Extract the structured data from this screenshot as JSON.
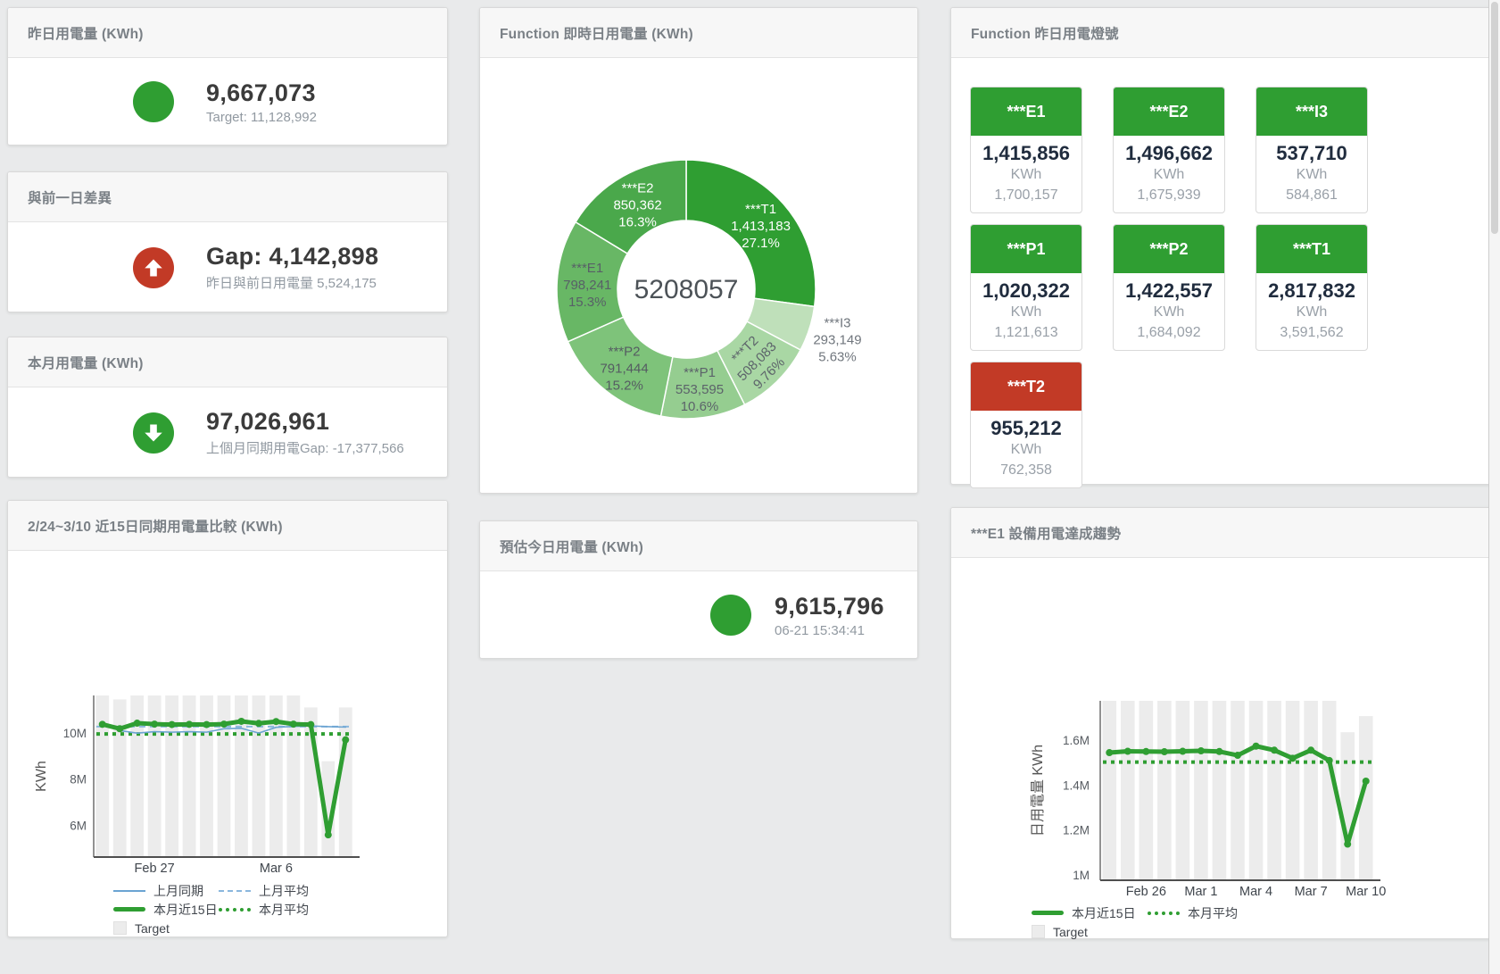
{
  "colors": {
    "green": "#2f9e32",
    "red": "#c23a26",
    "blue_line": "#6ba4d2",
    "blue_dashed": "#8ab7dd",
    "target_bar": "#ececec",
    "value_text": "#3b3b3b",
    "tile_value_text": "#202c3e",
    "panel_title_text": "#7a8086"
  },
  "panels": {
    "yesterday": {
      "title": "昨日用電量 (KWh)",
      "value": "9,667,073",
      "subtitle": "Target: 11,128,992",
      "indicator": "circle",
      "indicator_color": "#2f9e32"
    },
    "day_gap": {
      "title": "與前一日差異",
      "value": "Gap: 4,142,898",
      "subtitle": "昨日與前日用電量 5,524,175",
      "indicator": "arrow-up",
      "indicator_color": "#c23a26"
    },
    "month": {
      "title": "本月用電量 (KWh)",
      "value": "97,026,961",
      "subtitle": "上個月同期用電Gap: -17,377,566",
      "indicator": "arrow-down",
      "indicator_color": "#2f9e32"
    },
    "compare15": {
      "title": "2/24~3/10 近15日同期用電量比較 (KWh)"
    },
    "realtime": {
      "title": "Function 即時日用電量 (KWh)"
    },
    "estimate": {
      "title": "預估今日用電量 (KWh)",
      "value": "9,615,796",
      "subtitle": "06-21 15:34:41",
      "indicator": "circle",
      "indicator_color": "#2f9e32"
    },
    "lights": {
      "title": "Function 昨日用電燈號",
      "unit": "KWh",
      "tiles": [
        {
          "label": "***E1",
          "value": "1,415,856",
          "target": "1,700,157",
          "status_color": "#2f9e32"
        },
        {
          "label": "***E2",
          "value": "1,496,662",
          "target": "1,675,939",
          "status_color": "#2f9e32"
        },
        {
          "label": "***I3",
          "value": "537,710",
          "target": "584,861",
          "status_color": "#2f9e32"
        },
        {
          "label": "***P1",
          "value": "1,020,322",
          "target": "1,121,613",
          "status_color": "#2f9e32"
        },
        {
          "label": "***P2",
          "value": "1,422,557",
          "target": "1,684,092",
          "status_color": "#2f9e32"
        },
        {
          "label": "***T1",
          "value": "2,817,832",
          "target": "3,591,562",
          "status_color": "#2f9e32"
        },
        {
          "label": "***T2",
          "value": "955,212",
          "target": "762,358",
          "status_color": "#c23a26"
        }
      ]
    },
    "e1_trend": {
      "title": "***E1 設備用電達成趨勢"
    }
  },
  "chart_data": [
    {
      "id": "realtime_donut",
      "type": "pie",
      "title": "Function 即時日用電量 (KWh)",
      "center_total": "5208057",
      "slices": [
        {
          "name": "***T1",
          "value": 1413183,
          "value_label": "1,413,183",
          "pct": 27.1,
          "pct_label": "27.1%",
          "color": "#2f9e32",
          "label_color": "#ffffff"
        },
        {
          "name": "***I3",
          "value": 293149,
          "value_label": "293,149",
          "pct": 5.63,
          "pct_label": "5.63%",
          "color": "#bfe0ba",
          "label_color": "#70767d",
          "outside": true
        },
        {
          "name": "***T2",
          "value": 508083,
          "value_label": "508,083",
          "pct": 9.76,
          "pct_label": "9.76%",
          "color": "#a9d7a4",
          "label_color": "#5c636a",
          "rotate": true
        },
        {
          "name": "***P1",
          "value": 553595,
          "value_label": "553,595",
          "pct": 10.6,
          "pct_label": "10.6%",
          "color": "#95cd90",
          "label_color": "#5c636a"
        },
        {
          "name": "***P2",
          "value": 791444,
          "value_label": "791,444",
          "pct": 15.2,
          "pct_label": "15.2%",
          "color": "#7ec37a",
          "label_color": "#555c62"
        },
        {
          "name": "***E1",
          "value": 798241,
          "value_label": "798,241",
          "pct": 15.3,
          "pct_label": "15.3%",
          "color": "#68b765",
          "label_color": "#586067"
        },
        {
          "name": "***E2",
          "value": 850362,
          "value_label": "850,362",
          "pct": 16.3,
          "pct_label": "16.3%",
          "color": "#4aa84b",
          "label_color": "#ffffff"
        }
      ]
    },
    {
      "id": "compare15",
      "type": "line",
      "title": "2/24~3/10 近15日同期用電量比較 (KWh)",
      "ylabel": "KWh",
      "days": 15,
      "ylim": [
        4.62,
        11.62
      ],
      "yticks": [
        {
          "v": 6,
          "label": "6M"
        },
        {
          "v": 8,
          "label": "8M"
        },
        {
          "v": 10,
          "label": "10M"
        }
      ],
      "x_labels": [
        {
          "day": 4,
          "label": "Feb 27"
        },
        {
          "day": 11,
          "label": "Mar 6"
        }
      ],
      "bar_color": "#ececec",
      "legend_target": "Target",
      "target_bars": [
        11.62,
        11.45,
        11.62,
        11.62,
        11.62,
        11.62,
        11.62,
        11.62,
        11.62,
        11.62,
        11.62,
        11.62,
        11.1,
        8.77,
        11.1
      ],
      "series": [
        {
          "name": "上月同期",
          "type": "line",
          "style": "solid",
          "width": 1.6,
          "color": "#6ba4d2",
          "values": [
            10.45,
            10.1,
            9.99,
            10.05,
            10.03,
            10.05,
            10.03,
            10.18,
            10.2,
            9.99,
            10.24,
            10.28,
            10.3,
            10.27,
            10.25
          ]
        },
        {
          "name": "上月平均",
          "type": "avg",
          "style": "dashed",
          "color": "#8ab7dd",
          "value": 10.27
        },
        {
          "name": "本月近15日",
          "type": "line",
          "style": "solid",
          "width": 5,
          "color": "#2f9e32",
          "values": [
            10.37,
            10.18,
            10.42,
            10.38,
            10.36,
            10.37,
            10.36,
            10.38,
            10.5,
            10.41,
            10.49,
            10.38,
            10.36,
            5.58,
            9.7
          ]
        },
        {
          "name": "本月平均",
          "type": "avg",
          "style": "dotted",
          "color": "#2f9e32",
          "value": 9.95
        }
      ]
    },
    {
      "id": "e1_trend",
      "type": "line",
      "title": "***E1 設備用電達成趨勢",
      "ylabel": "日用電量 KWh",
      "days": 15,
      "ylim": [
        0.976,
        1.776
      ],
      "yticks": [
        {
          "v": 1,
          "label": "1M"
        },
        {
          "v": 1.2,
          "label": "1.2M"
        },
        {
          "v": 1.4,
          "label": "1.4M"
        },
        {
          "v": 1.6,
          "label": "1.6M"
        }
      ],
      "x_labels": [
        {
          "day": 3,
          "label": "Feb 26"
        },
        {
          "day": 6,
          "label": "Mar 1"
        },
        {
          "day": 9,
          "label": "Mar 4"
        },
        {
          "day": 12,
          "label": "Mar 7"
        },
        {
          "day": 15,
          "label": "Mar 10"
        }
      ],
      "bar_color": "#ececec",
      "legend_target": "Target",
      "target_bars": [
        1.776,
        1.776,
        1.776,
        1.776,
        1.776,
        1.776,
        1.776,
        1.776,
        1.776,
        1.776,
        1.776,
        1.776,
        1.776,
        1.636,
        1.708
      ],
      "series": [
        {
          "name": "本月近15日",
          "type": "line",
          "style": "solid",
          "width": 5,
          "color": "#2f9e32",
          "values": [
            1.545,
            1.551,
            1.55,
            1.549,
            1.551,
            1.553,
            1.55,
            1.533,
            1.574,
            1.556,
            1.52,
            1.556,
            1.51,
            1.137,
            1.418
          ]
        },
        {
          "name": "本月平均",
          "type": "avg",
          "style": "dotted",
          "color": "#2f9e32",
          "value": 1.503
        }
      ]
    }
  ]
}
